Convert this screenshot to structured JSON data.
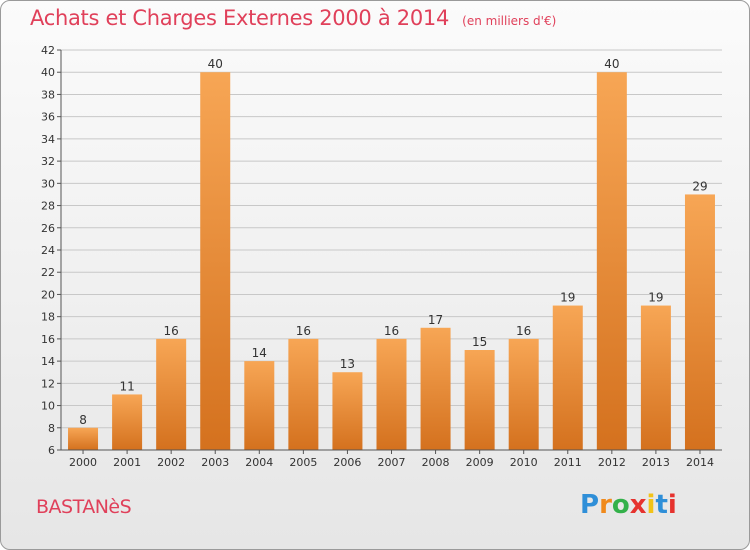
{
  "title": "Achats et Charges Externes 2000 à 2014",
  "subtitle": "(en milliers d'€)",
  "commune": "BASTANèS",
  "logo": {
    "letters": [
      "P",
      "r",
      "o",
      "x",
      "i",
      "t",
      "i"
    ],
    "colors": [
      "#2f8fd8",
      "#f08a1c",
      "#33b14a",
      "#e6322e",
      "#f2c318",
      "#2f8fd8",
      "#e6322e"
    ]
  },
  "colors": {
    "title": "#e0405a",
    "bar_light": "#f7a655",
    "bar_dark": "#d4711e",
    "grid": "#c8c8c8",
    "axis": "#555555"
  },
  "chart_data": {
    "type": "bar",
    "categories": [
      "2000",
      "2001",
      "2002",
      "2003",
      "2004",
      "2005",
      "2006",
      "2007",
      "2008",
      "2009",
      "2010",
      "2011",
      "2012",
      "2013",
      "2014"
    ],
    "values": [
      8,
      11,
      16,
      40,
      14,
      16,
      13,
      16,
      17,
      15,
      16,
      19,
      40,
      19,
      29
    ],
    "ylim": [
      6,
      42
    ],
    "yticks": [
      6,
      8,
      10,
      12,
      14,
      16,
      18,
      20,
      22,
      24,
      26,
      28,
      30,
      32,
      34,
      36,
      38,
      40,
      42
    ],
    "grid": true,
    "data_labels": true
  }
}
